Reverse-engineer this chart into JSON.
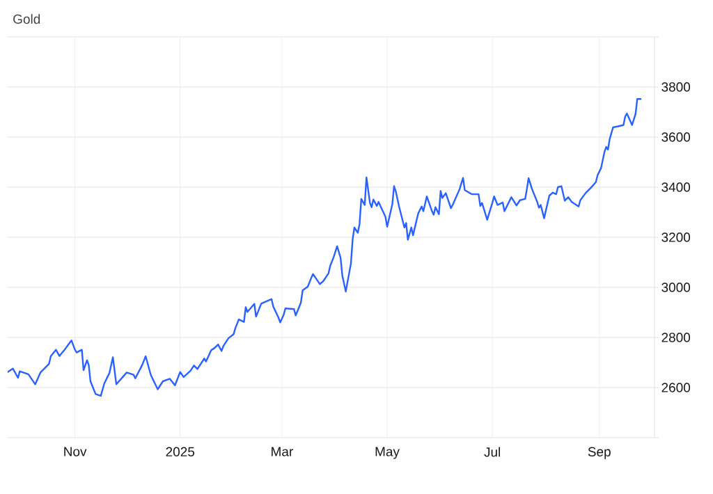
{
  "chart_data": {
    "type": "line",
    "title": "Gold",
    "color": "#2962ff",
    "x": [
      "2024-09-23",
      "2024-09-26",
      "2024-09-29",
      "2024-09-30",
      "2024-10-05",
      "2024-10-09",
      "2024-10-12",
      "2024-10-17",
      "2024-10-18",
      "2024-10-21",
      "2024-10-23",
      "2024-10-26",
      "2024-10-29",
      "2024-10-30",
      "2024-11-01",
      "2024-11-02",
      "2024-11-05",
      "2024-11-06",
      "2024-11-08",
      "2024-11-09",
      "2024-11-10",
      "2024-11-13",
      "2024-11-16",
      "2024-11-18",
      "2024-11-21",
      "2024-11-23",
      "2024-11-25",
      "2024-11-29",
      "2024-12-01",
      "2024-12-05",
      "2024-12-06",
      "2024-12-10",
      "2024-12-12",
      "2024-12-15",
      "2024-12-19",
      "2024-12-22",
      "2024-12-26",
      "2024-12-29",
      "2025-01-01",
      "2025-01-03",
      "2025-01-07",
      "2025-01-09",
      "2025-01-11",
      "2025-01-15",
      "2025-01-16",
      "2025-01-19",
      "2025-01-21",
      "2025-01-23",
      "2025-01-25",
      "2025-01-26",
      "2025-01-29",
      "2025-02-01",
      "2025-02-02",
      "2025-02-04",
      "2025-02-07",
      "2025-02-08",
      "2025-02-09",
      "2025-02-13",
      "2025-02-14",
      "2025-02-17",
      "2025-02-20",
      "2025-02-23",
      "2025-02-24",
      "2025-02-27",
      "2025-02-28",
      "2025-03-02",
      "2025-03-03",
      "2025-03-08",
      "2025-03-09",
      "2025-03-12",
      "2025-03-13",
      "2025-03-16",
      "2025-03-18",
      "2025-03-19",
      "2025-03-23",
      "2025-03-25",
      "2025-03-28",
      "2025-03-29",
      "2025-03-31",
      "2025-04-02",
      "2025-04-04",
      "2025-04-05",
      "2025-04-07",
      "2025-04-10",
      "2025-04-11",
      "2025-04-12",
      "2025-04-14",
      "2025-04-15",
      "2025-04-16",
      "2025-04-18",
      "2025-04-19",
      "2025-04-21",
      "2025-04-22",
      "2025-04-23",
      "2025-04-25",
      "2025-04-26",
      "2025-04-30",
      "2025-05-01",
      "2025-05-04",
      "2025-05-05",
      "2025-05-06",
      "2025-05-08",
      "2025-05-11",
      "2025-05-12",
      "2025-05-13",
      "2025-05-15",
      "2025-05-16",
      "2025-05-19",
      "2025-05-21",
      "2025-05-22",
      "2025-05-24",
      "2025-05-27",
      "2025-05-28",
      "2025-05-29",
      "2025-05-31",
      "2025-06-01",
      "2025-06-02",
      "2025-06-04",
      "2025-06-07",
      "2025-06-08",
      "2025-06-12",
      "2025-06-14",
      "2025-06-15",
      "2025-06-19",
      "2025-06-23",
      "2025-06-24",
      "2025-06-25",
      "2025-06-28",
      "2025-07-01",
      "2025-07-02",
      "2025-07-04",
      "2025-07-07",
      "2025-07-08",
      "2025-07-12",
      "2025-07-15",
      "2025-07-17",
      "2025-07-20",
      "2025-07-21",
      "2025-07-22",
      "2025-07-24",
      "2025-07-27",
      "2025-07-28",
      "2025-07-29",
      "2025-07-31",
      "2025-08-03",
      "2025-08-05",
      "2025-08-07",
      "2025-08-08",
      "2025-08-10",
      "2025-08-12",
      "2025-08-14",
      "2025-08-16",
      "2025-08-20",
      "2025-08-21",
      "2025-08-24",
      "2025-08-27",
      "2025-08-30",
      "2025-08-31",
      "2025-09-02",
      "2025-09-04",
      "2025-09-05",
      "2025-09-06",
      "2025-09-07",
      "2025-09-09",
      "2025-09-12",
      "2025-09-15",
      "2025-09-16",
      "2025-09-17",
      "2025-09-20",
      "2025-09-22",
      "2025-09-23",
      "2025-09-25"
    ],
    "values": [
      2662,
      2676,
      2639,
      2665,
      2653,
      2613,
      2660,
      2695,
      2725,
      2751,
      2726,
      2751,
      2779,
      2788,
      2751,
      2740,
      2751,
      2669,
      2709,
      2690,
      2625,
      2574,
      2567,
      2616,
      2658,
      2721,
      2613,
      2644,
      2660,
      2651,
      2637,
      2690,
      2725,
      2650,
      2593,
      2625,
      2635,
      2609,
      2662,
      2642,
      2667,
      2688,
      2674,
      2716,
      2704,
      2749,
      2758,
      2772,
      2746,
      2765,
      2797,
      2813,
      2837,
      2872,
      2862,
      2921,
      2902,
      2934,
      2883,
      2935,
      2944,
      2953,
      2923,
      2879,
      2860,
      2890,
      2916,
      2913,
      2888,
      2939,
      2988,
      3003,
      3038,
      3053,
      3013,
      3025,
      3056,
      3086,
      3121,
      3164,
      3118,
      3048,
      2983,
      3095,
      3192,
      3239,
      3218,
      3253,
      3353,
      3329,
      3439,
      3338,
      3320,
      3351,
      3325,
      3341,
      3282,
      3242,
      3332,
      3404,
      3383,
      3320,
      3239,
      3257,
      3190,
      3239,
      3208,
      3295,
      3323,
      3304,
      3363,
      3304,
      3290,
      3320,
      3292,
      3385,
      3357,
      3376,
      3316,
      3329,
      3392,
      3437,
      3388,
      3372,
      3372,
      3325,
      3337,
      3270,
      3338,
      3363,
      3329,
      3339,
      3304,
      3360,
      3327,
      3348,
      3353,
      3392,
      3436,
      3392,
      3341,
      3318,
      3329,
      3276,
      3366,
      3378,
      3372,
      3400,
      3404,
      3346,
      3360,
      3341,
      3323,
      3348,
      3376,
      3397,
      3420,
      3448,
      3476,
      3541,
      3561,
      3550,
      3592,
      3639,
      3643,
      3648,
      3682,
      3694,
      3648,
      3692,
      3752,
      3752
    ],
    "xlim": [
      "2024-09-23",
      "2025-10-03"
    ],
    "xticks": [
      {
        "value": "2024-11-01",
        "label": "Nov"
      },
      {
        "value": "2025-01-01",
        "label": "2025"
      },
      {
        "value": "2025-03-01",
        "label": "Mar"
      },
      {
        "value": "2025-05-01",
        "label": "May"
      },
      {
        "value": "2025-07-01",
        "label": "Jul"
      },
      {
        "value": "2025-09-01",
        "label": "Sep"
      }
    ],
    "ylim": [
      2400,
      4000
    ],
    "yticks": [
      {
        "value": 2400,
        "label": null
      },
      2600,
      2800,
      3000,
      3200,
      3400,
      3600,
      3800,
      {
        "value": 4000,
        "label": null
      }
    ],
    "grid": true
  }
}
